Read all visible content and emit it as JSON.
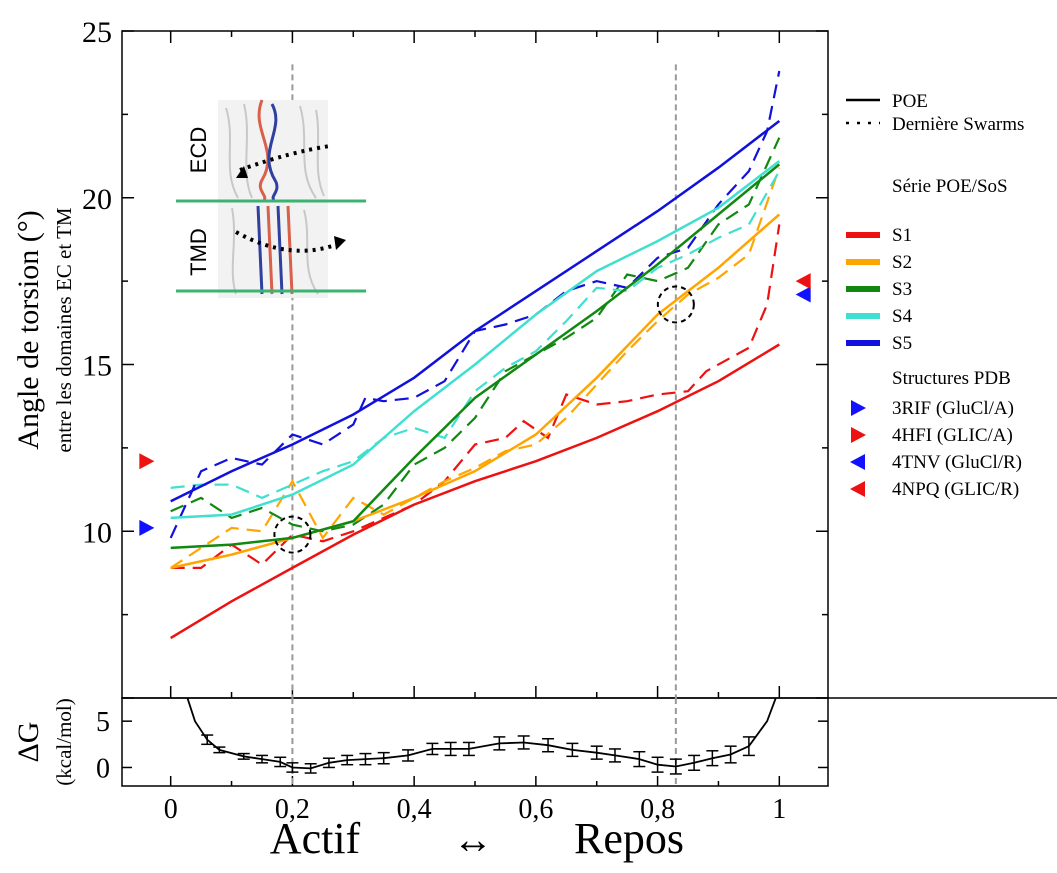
{
  "chart_data": [
    {
      "type": "line",
      "ylabel": "Angle de torsion  (°)",
      "ylabel2": "entre les domaines EC et TM",
      "xlim": [
        -0.08,
        1.08
      ],
      "ylim": [
        5,
        25
      ],
      "yticks": [
        10,
        15,
        20,
        25
      ],
      "legend": {
        "styles_title": "",
        "styles": [
          {
            "label": "POE",
            "dash": "solid"
          },
          {
            "label": "Dernière Swarms",
            "dash": "dotted"
          }
        ],
        "series_title": "Série POE/SoS",
        "structures_title": "Structures PDB"
      },
      "series": [
        {
          "name": "S1",
          "color": "#ee1111",
          "poe": [
            [
              0,
              6.8
            ],
            [
              0.1,
              7.9
            ],
            [
              0.2,
              8.9
            ],
            [
              0.3,
              9.9
            ],
            [
              0.4,
              10.8
            ],
            [
              0.5,
              11.5
            ],
            [
              0.6,
              12.1
            ],
            [
              0.7,
              12.8
            ],
            [
              0.8,
              13.6
            ],
            [
              0.9,
              14.5
            ],
            [
              1.0,
              15.6
            ]
          ],
          "swarms": [
            [
              0,
              8.9
            ],
            [
              0.05,
              8.9
            ],
            [
              0.1,
              9.6
            ],
            [
              0.15,
              9.0
            ],
            [
              0.2,
              9.9
            ],
            [
              0.25,
              9.7
            ],
            [
              0.3,
              10.0
            ],
            [
              0.35,
              10.4
            ],
            [
              0.4,
              10.8
            ],
            [
              0.45,
              11.5
            ],
            [
              0.5,
              12.6
            ],
            [
              0.55,
              12.8
            ],
            [
              0.58,
              13.3
            ],
            [
              0.62,
              12.8
            ],
            [
              0.65,
              14.1
            ],
            [
              0.7,
              13.8
            ],
            [
              0.75,
              13.9
            ],
            [
              0.8,
              14.1
            ],
            [
              0.85,
              14.2
            ],
            [
              0.88,
              14.8
            ],
            [
              0.92,
              15.2
            ],
            [
              0.95,
              15.5
            ],
            [
              0.98,
              16.8
            ],
            [
              1.0,
              19.2
            ]
          ]
        },
        {
          "name": "S2",
          "color": "#ffa500",
          "poe": [
            [
              0,
              8.9
            ],
            [
              0.1,
              9.3
            ],
            [
              0.2,
              9.8
            ],
            [
              0.3,
              10.3
            ],
            [
              0.4,
              11.0
            ],
            [
              0.5,
              11.8
            ],
            [
              0.6,
              12.9
            ],
            [
              0.7,
              14.6
            ],
            [
              0.8,
              16.5
            ],
            [
              0.9,
              17.9
            ],
            [
              1.0,
              19.5
            ]
          ],
          "swarms": [
            [
              0,
              8.9
            ],
            [
              0.05,
              9.5
            ],
            [
              0.1,
              10.1
            ],
            [
              0.15,
              10.0
            ],
            [
              0.2,
              11.5
            ],
            [
              0.25,
              9.8
            ],
            [
              0.3,
              11.0
            ],
            [
              0.35,
              10.5
            ],
            [
              0.4,
              11.0
            ],
            [
              0.45,
              11.5
            ],
            [
              0.5,
              11.9
            ],
            [
              0.55,
              12.4
            ],
            [
              0.6,
              12.6
            ],
            [
              0.65,
              13.4
            ],
            [
              0.7,
              14.4
            ],
            [
              0.75,
              15.4
            ],
            [
              0.8,
              16.3
            ],
            [
              0.85,
              17.1
            ],
            [
              0.9,
              17.6
            ],
            [
              0.95,
              18.3
            ],
            [
              1.0,
              20.9
            ]
          ]
        },
        {
          "name": "S3",
          "color": "#118811",
          "poe": [
            [
              0,
              9.5
            ],
            [
              0.1,
              9.6
            ],
            [
              0.2,
              9.8
            ],
            [
              0.3,
              10.3
            ],
            [
              0.4,
              12.2
            ],
            [
              0.5,
              14.0
            ],
            [
              0.6,
              15.3
            ],
            [
              0.7,
              16.6
            ],
            [
              0.8,
              18.0
            ],
            [
              0.9,
              19.5
            ],
            [
              1.0,
              21.0
            ]
          ],
          "swarms": [
            [
              0,
              10.6
            ],
            [
              0.05,
              11.0
            ],
            [
              0.1,
              10.4
            ],
            [
              0.15,
              10.7
            ],
            [
              0.2,
              10.2
            ],
            [
              0.25,
              10.0
            ],
            [
              0.3,
              10.2
            ],
            [
              0.35,
              10.8
            ],
            [
              0.4,
              12.0
            ],
            [
              0.45,
              12.5
            ],
            [
              0.5,
              13.4
            ],
            [
              0.55,
              14.8
            ],
            [
              0.6,
              15.3
            ],
            [
              0.65,
              15.8
            ],
            [
              0.7,
              16.4
            ],
            [
              0.75,
              17.7
            ],
            [
              0.8,
              17.5
            ],
            [
              0.85,
              17.9
            ],
            [
              0.9,
              19.2
            ],
            [
              0.95,
              19.8
            ],
            [
              1.0,
              21.8
            ]
          ]
        },
        {
          "name": "S4",
          "color": "#40e0d0",
          "poe": [
            [
              0,
              10.4
            ],
            [
              0.1,
              10.5
            ],
            [
              0.2,
              11.1
            ],
            [
              0.3,
              12.0
            ],
            [
              0.4,
              13.6
            ],
            [
              0.5,
              15.0
            ],
            [
              0.6,
              16.5
            ],
            [
              0.7,
              17.8
            ],
            [
              0.8,
              18.7
            ],
            [
              0.9,
              19.7
            ],
            [
              1.0,
              21.1
            ]
          ],
          "swarms": [
            [
              0,
              11.3
            ],
            [
              0.05,
              11.4
            ],
            [
              0.1,
              11.4
            ],
            [
              0.15,
              11.0
            ],
            [
              0.2,
              11.4
            ],
            [
              0.25,
              11.8
            ],
            [
              0.3,
              12.1
            ],
            [
              0.35,
              12.8
            ],
            [
              0.4,
              13.1
            ],
            [
              0.45,
              12.8
            ],
            [
              0.5,
              14.2
            ],
            [
              0.55,
              14.9
            ],
            [
              0.6,
              15.4
            ],
            [
              0.65,
              16.3
            ],
            [
              0.7,
              17.3
            ],
            [
              0.75,
              17.2
            ],
            [
              0.8,
              17.9
            ],
            [
              0.85,
              18.3
            ],
            [
              0.9,
              18.8
            ],
            [
              0.95,
              19.2
            ],
            [
              1.0,
              20.8
            ]
          ]
        },
        {
          "name": "S5",
          "color": "#1111dd",
          "poe": [
            [
              0,
              10.9
            ],
            [
              0.1,
              11.8
            ],
            [
              0.2,
              12.6
            ],
            [
              0.3,
              13.5
            ],
            [
              0.4,
              14.6
            ],
            [
              0.5,
              16.0
            ],
            [
              0.6,
              17.2
            ],
            [
              0.7,
              18.4
            ],
            [
              0.8,
              19.6
            ],
            [
              0.9,
              20.9
            ],
            [
              1.0,
              22.3
            ]
          ],
          "swarms": [
            [
              0,
              9.8
            ],
            [
              0.05,
              11.8
            ],
            [
              0.1,
              12.2
            ],
            [
              0.15,
              12.0
            ],
            [
              0.2,
              12.9
            ],
            [
              0.25,
              12.6
            ],
            [
              0.3,
              13.2
            ],
            [
              0.32,
              14.0
            ],
            [
              0.35,
              13.9
            ],
            [
              0.4,
              14.0
            ],
            [
              0.45,
              14.5
            ],
            [
              0.5,
              16.0
            ],
            [
              0.55,
              16.2
            ],
            [
              0.6,
              16.5
            ],
            [
              0.65,
              17.2
            ],
            [
              0.7,
              17.5
            ],
            [
              0.75,
              17.3
            ],
            [
              0.8,
              18.2
            ],
            [
              0.85,
              18.5
            ],
            [
              0.9,
              19.8
            ],
            [
              0.95,
              20.8
            ],
            [
              0.98,
              22.0
            ],
            [
              1.0,
              23.8
            ]
          ]
        }
      ],
      "structures": [
        {
          "label": "3RIF (GluCl/A)",
          "color": "#1111ff",
          "direction": "right",
          "y": 10.1
        },
        {
          "label": "4HFI (GLIC/A)",
          "color": "#ee1111",
          "direction": "right",
          "y": 12.1
        },
        {
          "label": "4TNV (GluCl/R)",
          "color": "#1111ff",
          "direction": "left",
          "y": 17.1
        },
        {
          "label": "4NPQ (GLIC/R)",
          "color": "#ee1111",
          "direction": "left",
          "y": 17.5
        }
      ],
      "annotations": {
        "vlines_x": [
          0.2,
          0.83
        ],
        "circles": [
          [
            0.2,
            9.9
          ],
          [
            0.83,
            16.8
          ]
        ],
        "inset_labels": [
          "ECD",
          "TMD"
        ]
      }
    },
    {
      "type": "line",
      "ylabel": "ΔG",
      "ylabel2": "(kcal/mol)",
      "xlim": [
        -0.08,
        1.08
      ],
      "ylim": [
        -2,
        7.5
      ],
      "yticks": [
        0,
        5
      ],
      "xticks": [
        0,
        0.2,
        0.4,
        0.6,
        0.8,
        1
      ],
      "xtick_labels": [
        "0",
        "0,2",
        "0,4",
        "0,6",
        "0,8",
        "1"
      ],
      "x": [
        0.02,
        0.04,
        0.06,
        0.08,
        0.12,
        0.15,
        0.18,
        0.2,
        0.23,
        0.26,
        0.29,
        0.32,
        0.35,
        0.39,
        0.43,
        0.46,
        0.49,
        0.54,
        0.58,
        0.62,
        0.66,
        0.7,
        0.73,
        0.77,
        0.8,
        0.83,
        0.86,
        0.89,
        0.92,
        0.95,
        0.98,
        1.0
      ],
      "y": [
        9.0,
        5.0,
        3.0,
        1.9,
        1.2,
        0.9,
        0.6,
        0.0,
        -0.1,
        0.5,
        0.8,
        0.9,
        1.0,
        1.3,
        2.0,
        2.0,
        2.0,
        2.6,
        2.7,
        2.4,
        1.9,
        1.6,
        1.3,
        0.9,
        0.3,
        0.1,
        0.5,
        1.0,
        1.4,
        2.3,
        5.0,
        8.5
      ],
      "err": [
        0,
        0,
        0.5,
        0.3,
        0.3,
        0.4,
        0.5,
        0.5,
        0.5,
        0.5,
        0.5,
        0.6,
        0.6,
        0.6,
        0.6,
        0.7,
        0.7,
        0.7,
        0.7,
        0.7,
        0.7,
        0.7,
        0.7,
        0.8,
        0.8,
        0.8,
        0.8,
        0.8,
        0.9,
        1.0,
        0,
        0
      ],
      "err_visible_from": 2,
      "err_visible_to": 29
    }
  ],
  "xlabel": {
    "left": "Actif",
    "arrow": "↔",
    "right": "Repos"
  }
}
